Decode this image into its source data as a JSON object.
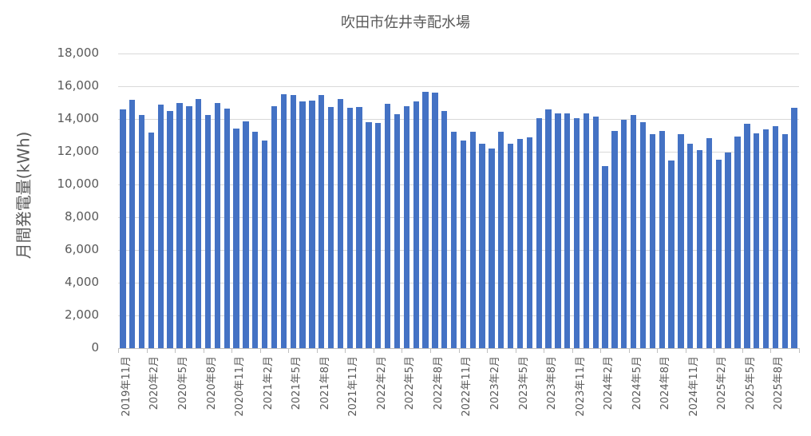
{
  "chart_data": {
    "type": "bar",
    "title": "吹田市佐井寺配水場",
    "xlabel": "",
    "ylabel": "月間発電量(kWh)",
    "ylim": [
      0,
      18000
    ],
    "yticks": [
      0,
      2000,
      4000,
      6000,
      8000,
      10000,
      12000,
      14000,
      16000,
      18000
    ],
    "ytick_labels": [
      "0",
      "2,000",
      "4,000",
      "6,000",
      "8,000",
      "10,000",
      "12,000",
      "14,000",
      "16,000",
      "18,000"
    ],
    "grid": true,
    "legend": null,
    "bar_color": "#4472C4",
    "categories": [
      "2019年11月",
      "2019年12月",
      "2020年1月",
      "2020年2月",
      "2020年3月",
      "2020年4月",
      "2020年5月",
      "2020年6月",
      "2020年7月",
      "2020年8月",
      "2020年9月",
      "2020年10月",
      "2020年11月",
      "2020年12月",
      "2021年1月",
      "2021年2月",
      "2021年3月",
      "2021年4月",
      "2021年5月",
      "2021年6月",
      "2021年7月",
      "2021年8月",
      "2021年9月",
      "2021年10月",
      "2021年11月",
      "2021年12月",
      "2022年1月",
      "2022年2月",
      "2022年3月",
      "2022年4月",
      "2022年5月",
      "2022年6月",
      "2022年7月",
      "2022年8月",
      "2022年9月",
      "2022年10月",
      "2022年11月",
      "2022年12月",
      "2023年1月",
      "2023年2月",
      "2023年3月",
      "2023年4月",
      "2023年5月",
      "2023年6月",
      "2023年7月",
      "2023年8月",
      "2023年9月",
      "2023年10月",
      "2023年11月",
      "2023年12月",
      "2024年1月",
      "2024年2月",
      "2024年3月",
      "2024年4月",
      "2024年5月",
      "2024年6月",
      "2024年7月",
      "2024年8月",
      "2024年9月",
      "2024年10月",
      "2024年11月",
      "2024年12月",
      "2025年1月",
      "2025年2月",
      "2025年3月",
      "2025年4月",
      "2025年5月",
      "2025年6月",
      "2025年7月",
      "2025年8月",
      "2025年9月",
      "2025年10月"
    ],
    "visible_xtick_labels": [
      "2019年11月",
      "2020年2月",
      "2020年5月",
      "2020年8月",
      "2020年11月",
      "2021年2月",
      "2021年5月",
      "2021年8月",
      "2021年11月",
      "2022年2月",
      "2022年5月",
      "2022年8月",
      "2022年11月",
      "2023年2月",
      "2023年5月",
      "2023年8月",
      "2023年11月",
      "2024年2月",
      "2024年5月",
      "2024年8月",
      "2024年11月",
      "2025年2月",
      "2025年5月",
      "2025年8月"
    ],
    "values": [
      14580,
      15170,
      14240,
      13170,
      14900,
      14500,
      14970,
      14780,
      15200,
      14240,
      14970,
      14630,
      13400,
      13850,
      13200,
      12660,
      14800,
      15500,
      15480,
      15090,
      15140,
      15480,
      14720,
      15200,
      14660,
      14730,
      13820,
      13740,
      14950,
      14280,
      14780,
      15090,
      15640,
      15590,
      14490,
      13200,
      12660,
      13200,
      12500,
      12200,
      13200,
      12470,
      12800,
      12860,
      14050,
      14580,
      14360,
      14360,
      14030,
      14360,
      14140,
      11100,
      13250,
      13950,
      14240,
      13820,
      13060,
      13280,
      11450,
      13090,
      12500,
      12080,
      12810,
      11500,
      11940,
      12930,
      13700,
      13120,
      13380,
      13580,
      13060,
      14700
    ]
  }
}
